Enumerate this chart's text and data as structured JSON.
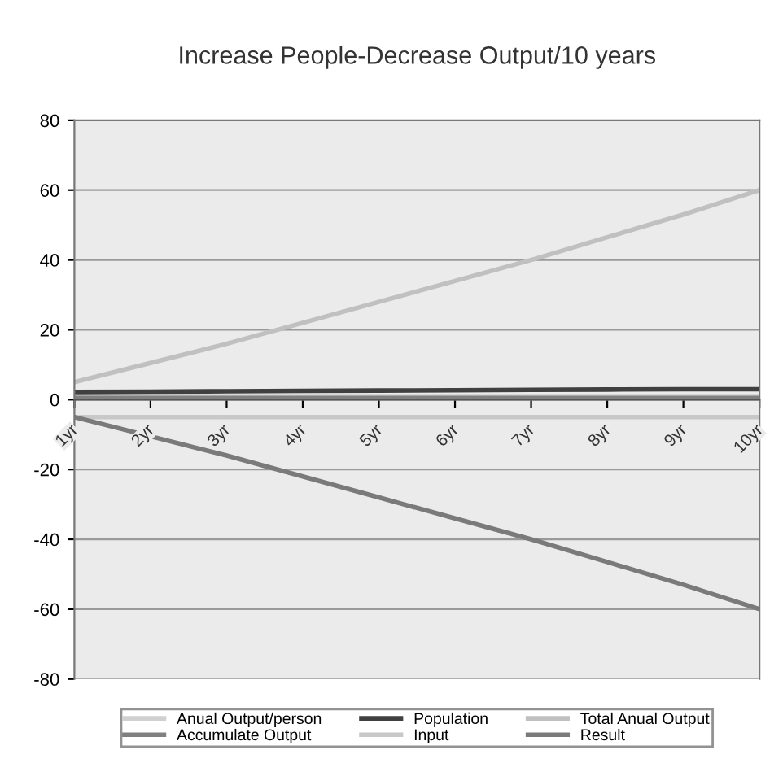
{
  "chart_data": {
    "type": "line",
    "title": "Increase People-Decrease Output/10 years",
    "categories": [
      "1yr",
      "2yr",
      "3yr",
      "4yr",
      "5yr",
      "6yr",
      "7yr",
      "8yr",
      "9yr",
      "10yr"
    ],
    "series": [
      {
        "name": "Anual Output/person",
        "color": "#d0d0d0",
        "values": [
          1,
          1,
          1,
          1,
          1,
          1,
          1,
          1,
          1,
          1
        ]
      },
      {
        "name": "Accumulate Output",
        "color": "#808080",
        "values": [
          0.5,
          0.5,
          0.5,
          0.5,
          0.5,
          0.5,
          0.5,
          0.5,
          0.5,
          0.5
        ]
      },
      {
        "name": "Population",
        "color": "#404040",
        "values": [
          2.2,
          2.3,
          2.4,
          2.5,
          2.6,
          2.7,
          2.8,
          2.9,
          3,
          3
        ]
      },
      {
        "name": "Input",
        "color": "#c8c8c8",
        "values": [
          -5,
          -5,
          -5,
          -5,
          -5,
          -5,
          -5,
          -5,
          -5,
          -5
        ]
      },
      {
        "name": "Total Anual Output",
        "color": "#c0c0c0",
        "values": [
          5,
          10.5,
          16,
          22,
          28,
          34,
          40,
          46.5,
          53,
          60
        ]
      },
      {
        "name": "Result",
        "color": "#7a7a7a",
        "values": [
          -5,
          -10.5,
          -16,
          -22,
          -28,
          -34,
          -40,
          -46.5,
          -53,
          -60
        ]
      }
    ],
    "ylim": [
      -80,
      80
    ],
    "yticks": [
      -80,
      -60,
      -40,
      -20,
      0,
      20,
      40,
      60,
      80
    ],
    "grid": "y",
    "legend": "bottom"
  }
}
